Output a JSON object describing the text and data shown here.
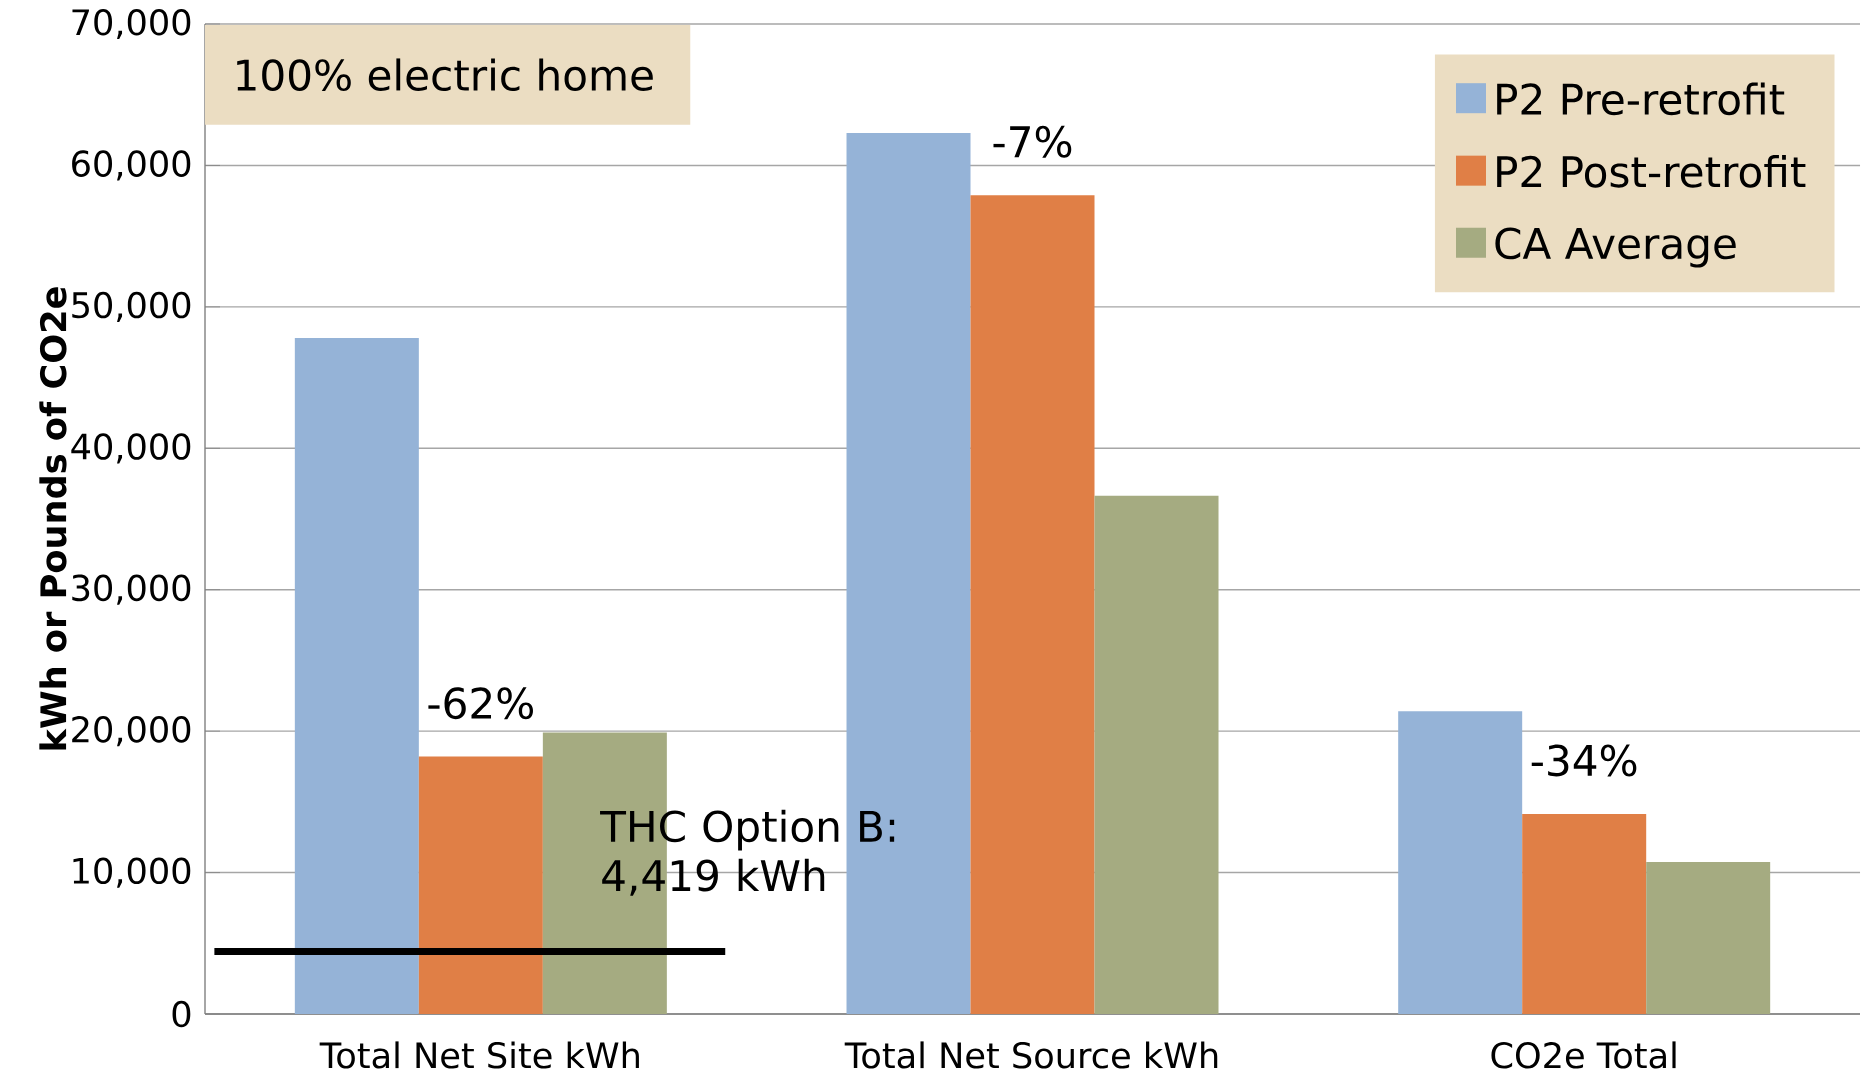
{
  "chart_data": {
    "type": "bar",
    "ylabel": "kWh  or   Pounds of CO2e",
    "categories": [
      "Total Net Site kWh",
      "Total Net Source kWh",
      "CO2e Total"
    ],
    "series": [
      {
        "name": "P2 Pre-retrofit",
        "color": "#95b3d7",
        "values": [
          47800,
          62300,
          21400
        ]
      },
      {
        "name": "P2 Post-retrofit",
        "color": "#e07f46",
        "values": [
          18200,
          57900,
          14150
        ]
      },
      {
        "name": "CA Average",
        "color": "#a5ab81",
        "values": [
          19900,
          36650,
          10750
        ]
      }
    ],
    "ylim": [
      0,
      70000
    ],
    "yticks": [
      0,
      {
        "value": 10000,
        "label": "10,000"
      },
      {
        "value": 20000,
        "label": "20,000"
      },
      {
        "value": 30000,
        "label": "30,000"
      },
      {
        "value": 40000,
        "label": "40,000"
      },
      {
        "value": 50000,
        "label": "50,000"
      },
      {
        "value": 60000,
        "label": "60,000"
      },
      {
        "value": 70000,
        "label": "70,000"
      }
    ],
    "grid": "y",
    "legend": "top right",
    "ref_lines": [
      {
        "axis": "y",
        "value": 4419,
        "label": "THC Option B: 4,419 kWh",
        "color": "#000000"
      }
    ],
    "annotations": [
      "100% electric home",
      {
        "text": "-62%",
        "x": "Total Net Site kWh",
        "y": 18200
      },
      {
        "text": "-7%",
        "x": "Total Net Source kWh",
        "y": 57900
      },
      {
        "text": "-34%",
        "x": "CO2e Total",
        "y": 14150
      }
    ]
  }
}
